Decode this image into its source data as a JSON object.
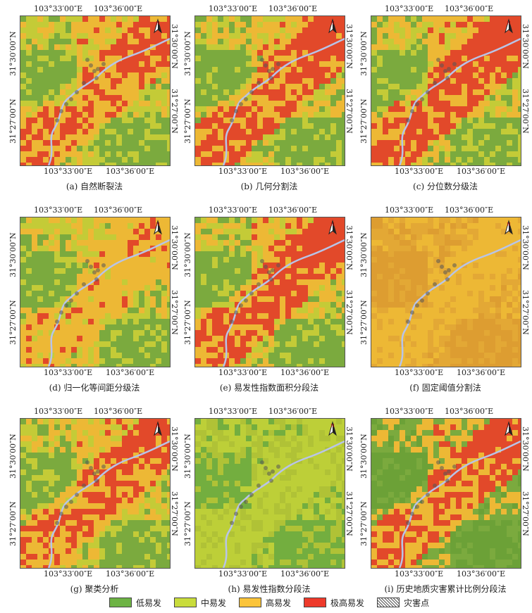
{
  "coords": {
    "top_lon_1": "103°33′00″E",
    "top_lon_2": "103°36′00″E",
    "bottom_lon_1": "103°33′00″E",
    "bottom_lon_2": "103°36′00″E",
    "lat_1": "31°30′00″N",
    "lat_2": "31°27′00″N"
  },
  "north_label": "N",
  "colors": {
    "low": "#6db344",
    "medium": "#c9dc3c",
    "high": "#fbc43a",
    "very_high": "#ee3a2b",
    "disaster": "#888888",
    "river": "#b8c4e8"
  },
  "panels": [
    {
      "caption": "(a) 自然断裂法",
      "palette": [
        "#6db344",
        "#c9dc3c",
        "#fbc43a",
        "#ee3a2b"
      ],
      "red": 0.45
    },
    {
      "caption": "(b) 几何分割法",
      "palette": [
        "#6db344",
        "#c9dc3c",
        "#fbc43a",
        "#ee3a2b"
      ],
      "red": 0.55
    },
    {
      "caption": "(c) 分位数分级法",
      "palette": [
        "#6db344",
        "#c9dc3c",
        "#fbc43a",
        "#ee3a2b"
      ],
      "red": 0.6
    },
    {
      "caption": "(d) 归一化等间距分级法",
      "palette": [
        "#6db344",
        "#c9dc3c",
        "#fbc43a",
        "#ee3a2b"
      ],
      "red": 0.2
    },
    {
      "caption": "(e) 易发性指数面积分段法",
      "palette": [
        "#6db344",
        "#c9dc3c",
        "#fbc43a",
        "#ee3a2b"
      ],
      "red": 0.55
    },
    {
      "caption": "(f) 固定阈值分割法",
      "palette": [
        "#e8a235",
        "#f0b03a",
        "#fbc43a",
        "#ee3a2b"
      ],
      "red": 0.03
    },
    {
      "caption": "(g) 聚类分析",
      "palette": [
        "#6db344",
        "#c9dc3c",
        "#fbc43a",
        "#ee3a2b"
      ],
      "red": 0.5
    },
    {
      "caption": "(h) 易发性指数分段法",
      "palette": [
        "#6db344",
        "#b8cc3a",
        "#c9dc3c",
        "#fbc43a"
      ],
      "red": 0.0
    },
    {
      "caption": "(i) 历史地质灾害累计比例分段法",
      "palette": [
        "#5aa83c",
        "#6db344",
        "#fbc43a",
        "#ee3a2b"
      ],
      "red": 0.5
    }
  ],
  "legend": [
    {
      "label": "低易发",
      "color": "#6db344"
    },
    {
      "label": "中易发",
      "color": "#c9dc3c"
    },
    {
      "label": "高易发",
      "color": "#fbc43a"
    },
    {
      "label": "极高易发",
      "color": "#ee3a2b"
    },
    {
      "label": "灾害点",
      "color": "hatch"
    }
  ]
}
